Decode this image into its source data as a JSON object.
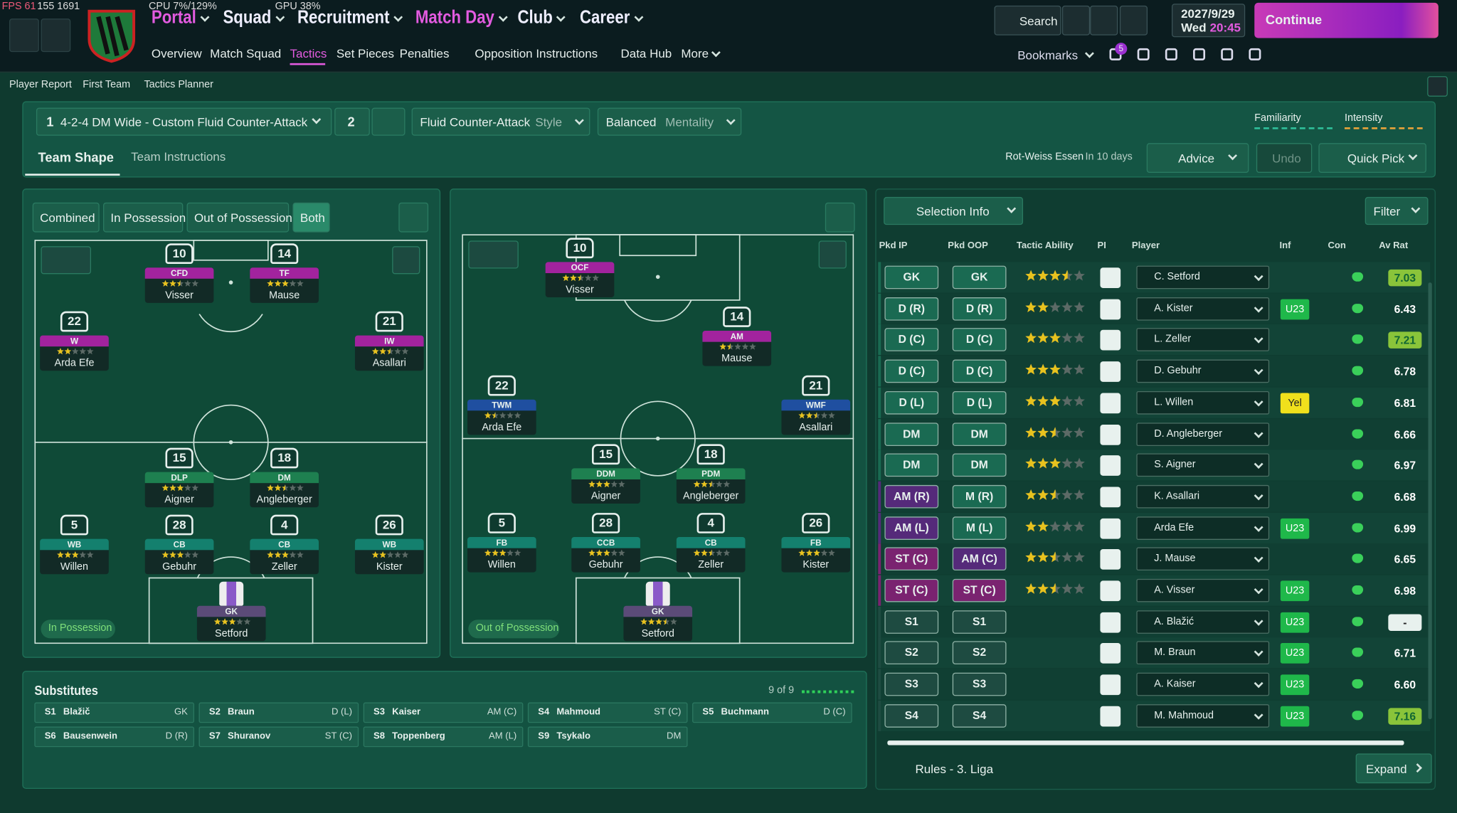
{
  "top_bar": {
    "fps": "FPS 61",
    "frame": "155 1691",
    "cpu": "CPU 7%/129%",
    "gpu": "GPU 38%",
    "nav": [
      "Portal",
      "Squad",
      "Recruitment",
      "Match Day",
      "Club",
      "Career"
    ],
    "subnav": [
      "Overview",
      "Match Squad",
      "Tactics",
      "Set Pieces",
      "Penalties",
      "Opposition Instructions",
      "Data Hub",
      "More"
    ],
    "search": "Search",
    "date": "2027/9/29",
    "day": "Wed",
    "time": "20:45",
    "continue": "Continue",
    "bookmarks": "Bookmarks",
    "notifications": 5
  },
  "breadcrumb": [
    "Player Report",
    "First Team",
    "Tactics Planner"
  ],
  "tactic_bar": {
    "slot1": "1",
    "name": "4-2-4 DM Wide - Custom Fluid Counter-Attack",
    "slot2": "2",
    "style": "Fluid Counter-Attack",
    "style_label": "Style",
    "mentality": "Balanced",
    "mentality_label": "Mentality",
    "familiarity": "Familiarity",
    "intensity": "Intensity"
  },
  "tabs": [
    "Team Shape",
    "Team Instructions"
  ],
  "next_match": {
    "opponent": "Rot-Weiss Essen",
    "when": "In 10 days"
  },
  "actions": {
    "advice": "Advice",
    "undo": "Undo",
    "quick_pick": "Quick Pick"
  },
  "pitch_views": [
    "Combined",
    "In Possession",
    "Out of Possession",
    "Both"
  ],
  "pitches": [
    {
      "label": "In Possession",
      "players": [
        {
          "number": 10,
          "role": "CFD",
          "name": "Visser",
          "rating": 2.5
        },
        {
          "number": 14,
          "role": "TF",
          "name": "Mause",
          "rating": 3
        },
        {
          "number": 22,
          "role": "W",
          "name": "Arda Efe",
          "rating": 2
        },
        {
          "number": 21,
          "role": "IW",
          "name": "Asallari",
          "rating": 2.5
        },
        {
          "number": 15,
          "role": "DLP",
          "name": "Aigner",
          "rating": 3
        },
        {
          "number": 18,
          "role": "DM",
          "name": "Angleberger",
          "rating": 2.5
        },
        {
          "number": 5,
          "role": "WB",
          "name": "Willen",
          "rating": 3
        },
        {
          "number": 28,
          "role": "CB",
          "name": "Gebuhr",
          "rating": 3
        },
        {
          "number": 4,
          "role": "CB",
          "name": "Zeller",
          "rating": 3
        },
        {
          "number": 26,
          "role": "WB",
          "name": "Kister",
          "rating": 2
        },
        {
          "number": null,
          "role": "GK",
          "name": "Setford",
          "rating": 3
        }
      ]
    },
    {
      "label": "Out of Possession",
      "players": [
        {
          "number": 10,
          "role": "OCF",
          "name": "Visser",
          "rating": 2.5
        },
        {
          "number": 14,
          "role": "AM",
          "name": "Mause",
          "rating": 1.5
        },
        {
          "number": 22,
          "role": "TWM",
          "name": "Arda Efe",
          "rating": 1.5
        },
        {
          "number": 21,
          "role": "WMF",
          "name": "Asallari",
          "rating": 2.5
        },
        {
          "number": 15,
          "role": "DDM",
          "name": "Aigner",
          "rating": 3
        },
        {
          "number": 18,
          "role": "PDM",
          "name": "Angleberger",
          "rating": 2.5
        },
        {
          "number": 5,
          "role": "FB",
          "name": "Willen",
          "rating": 3
        },
        {
          "number": 28,
          "role": "CCB",
          "name": "Gebuhr",
          "rating": 3
        },
        {
          "number": 4,
          "role": "CB",
          "name": "Zeller",
          "rating": 2.5
        },
        {
          "number": 26,
          "role": "FB",
          "name": "Kister",
          "rating": 3
        },
        {
          "number": null,
          "role": "GK",
          "name": "Setford",
          "rating": 3.5
        }
      ]
    }
  ],
  "selection": {
    "title": "Selection Info",
    "filter": "Filter",
    "columns": [
      "Pkd IP",
      "Pkd OOP",
      "Tactic Ability",
      "PI",
      "Player",
      "Inf",
      "Con",
      "Av Rat"
    ],
    "rows": [
      {
        "ip": "GK",
        "oop": "GK",
        "ability": 3.5,
        "player": "C. Setford",
        "inf": null,
        "rating": "7.03"
      },
      {
        "ip": "D (R)",
        "oop": "D (R)",
        "ability": 2,
        "player": "A. Kister",
        "inf": "U23",
        "rating": "6.43"
      },
      {
        "ip": "D (C)",
        "oop": "D (C)",
        "ability": 3,
        "player": "L. Zeller",
        "inf": null,
        "rating": "7.21"
      },
      {
        "ip": "D (C)",
        "oop": "D (C)",
        "ability": 3,
        "player": "D. Gebuhr",
        "inf": null,
        "rating": "6.78"
      },
      {
        "ip": "D (L)",
        "oop": "D (L)",
        "ability": 3,
        "player": "L. Willen",
        "inf": "Yel",
        "rating": "6.81"
      },
      {
        "ip": "DM",
        "oop": "DM",
        "ability": 2.5,
        "player": "D. Angleberger",
        "inf": null,
        "rating": "6.66"
      },
      {
        "ip": "DM",
        "oop": "DM",
        "ability": 3,
        "player": "S. Aigner",
        "inf": null,
        "rating": "6.97"
      },
      {
        "ip": "AM (R)",
        "oop": "M (R)",
        "ability": 2.5,
        "player": "K. Asallari",
        "inf": null,
        "rating": "6.68"
      },
      {
        "ip": "AM (L)",
        "oop": "M (L)",
        "ability": 2,
        "player": "Arda Efe",
        "inf": "U23",
        "rating": "6.99"
      },
      {
        "ip": "ST (C)",
        "oop": "AM (C)",
        "ability": 2.5,
        "player": "J. Mause",
        "inf": null,
        "rating": "6.65"
      },
      {
        "ip": "ST (C)",
        "oop": "ST (C)",
        "ability": 2.5,
        "player": "A. Visser",
        "inf": "U23",
        "rating": "6.98"
      },
      {
        "ip": "S1",
        "oop": "S1",
        "ability": null,
        "player": "A. Blažić",
        "inf": "U23",
        "rating": "-"
      },
      {
        "ip": "S2",
        "oop": "S2",
        "ability": null,
        "player": "M. Braun",
        "inf": "U23",
        "rating": "6.71"
      },
      {
        "ip": "S3",
        "oop": "S3",
        "ability": null,
        "player": "A. Kaiser",
        "inf": "U23",
        "rating": "6.60"
      },
      {
        "ip": "S4",
        "oop": "S4",
        "ability": null,
        "player": "M. Mahmoud",
        "inf": "U23",
        "rating": "7.16"
      }
    ],
    "footer": "Rules - 3. Liga",
    "expand": "Expand"
  },
  "substitutes": {
    "title": "Substitutes",
    "count": "9 of 9",
    "players": [
      {
        "slot": "S1",
        "name": "Blažič",
        "pos": "GK"
      },
      {
        "slot": "S2",
        "name": "Braun",
        "pos": "D (L)"
      },
      {
        "slot": "S3",
        "name": "Kaiser",
        "pos": "AM (C)"
      },
      {
        "slot": "S4",
        "name": "Mahmoud",
        "pos": "ST (C)"
      },
      {
        "slot": "S5",
        "name": "Buchmann",
        "pos": "D (C)"
      },
      {
        "slot": "S6",
        "name": "Bausenwein",
        "pos": "D (R)"
      },
      {
        "slot": "S7",
        "name": "Shuranov",
        "pos": "ST (C)"
      },
      {
        "slot": "S8",
        "name": "Toppenberg",
        "pos": "AM (L)"
      },
      {
        "slot": "S9",
        "name": "Tsykalo",
        "pos": "DM"
      }
    ]
  }
}
